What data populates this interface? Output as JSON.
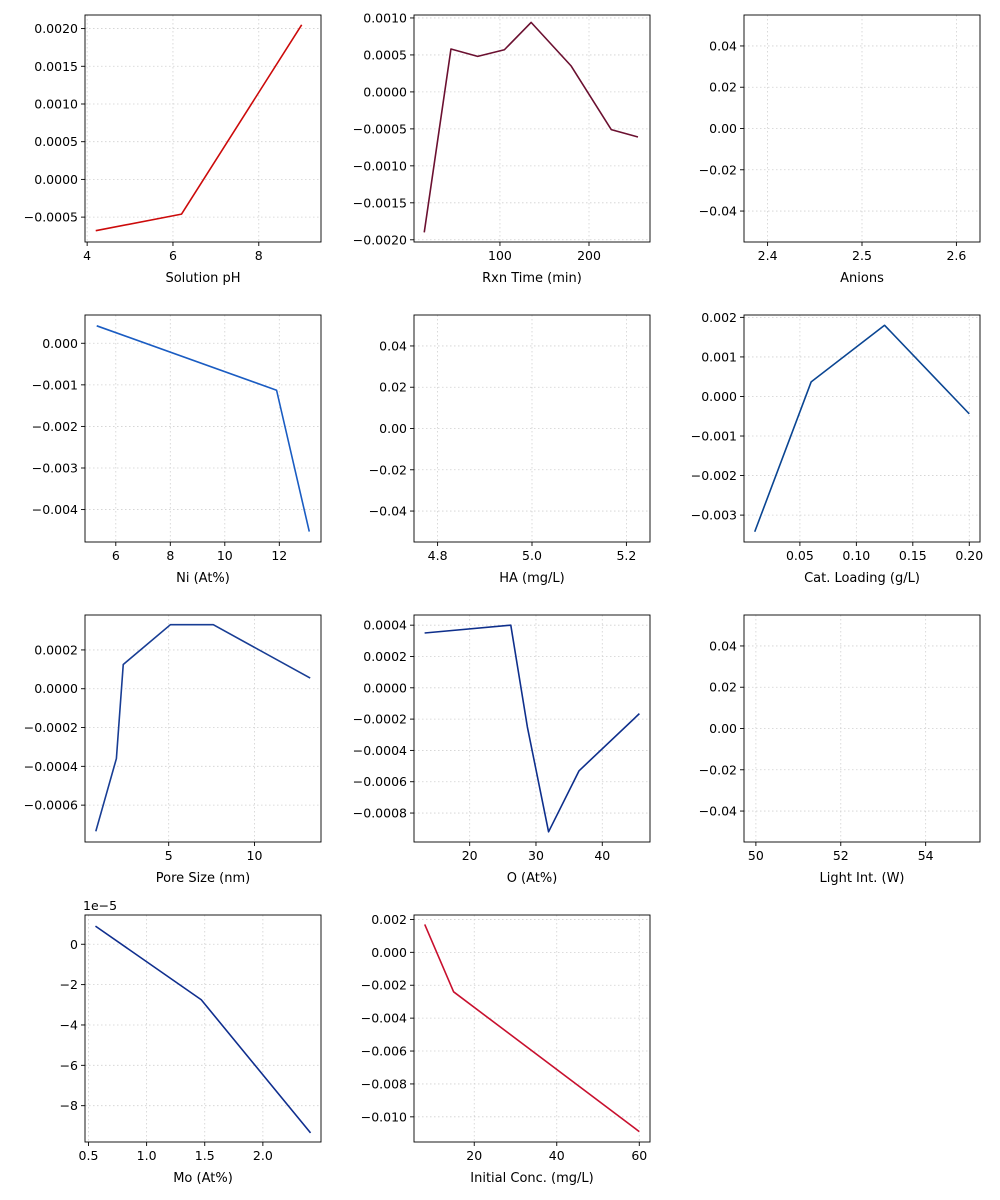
{
  "chart_data": [
    {
      "type": "line",
      "xlabel": "Solution pH",
      "color": "#cc0a0a",
      "grid": true,
      "xlim": [
        3.95,
        9.45
      ],
      "ylim": [
        -0.00083,
        0.00218
      ],
      "xticks": [
        4,
        6,
        8
      ],
      "xtick_labels": [
        "4",
        "6",
        "8"
      ],
      "yticks": [
        -0.0005,
        0.0,
        0.0005,
        0.001,
        0.0015,
        0.002
      ],
      "ytick_labels": [
        "−0.0005",
        "0.0000",
        "0.0005",
        "0.0010",
        "0.0015",
        "0.0020"
      ],
      "series": [
        {
          "x": [
            4.2,
            6.2,
            9.0
          ],
          "y": [
            -0.00068,
            -0.00046,
            0.00205
          ]
        }
      ]
    },
    {
      "type": "line",
      "xlabel": "Rxn Time (min)",
      "color": "#6b1030",
      "grid": true,
      "xlim": [
        3.5,
        268.5
      ],
      "ylim": [
        -0.00203,
        0.00104
      ],
      "xticks": [
        100,
        200
      ],
      "xtick_labels": [
        "100",
        "200"
      ],
      "yticks": [
        -0.002,
        -0.0015,
        -0.001,
        -0.0005,
        0.0,
        0.0005,
        0.001
      ],
      "ytick_labels": [
        "−0.0020",
        "−0.0015",
        "−0.0010",
        "−0.0005",
        "0.0000",
        "0.0005",
        "0.0010"
      ],
      "series": [
        {
          "x": [
            15,
            45,
            75,
            105,
            135,
            180,
            225,
            255
          ],
          "y": [
            -0.0019,
            0.00058,
            0.00048,
            0.00057,
            0.00094,
            0.00035,
            -0.00051,
            -0.00061
          ]
        }
      ]
    },
    {
      "type": "line",
      "xlabel": "Anions",
      "color": "#1f4e9a",
      "grid": true,
      "xlim": [
        2.375,
        2.625
      ],
      "ylim": [
        -0.055,
        0.055
      ],
      "xticks": [
        2.4,
        2.5,
        2.6
      ],
      "xtick_labels": [
        "2.4",
        "2.5",
        "2.6"
      ],
      "yticks": [
        -0.04,
        -0.02,
        0.0,
        0.02,
        0.04
      ],
      "ytick_labels": [
        "−0.04",
        "−0.02",
        "0.00",
        "0.02",
        "0.04"
      ],
      "series": []
    },
    {
      "type": "line",
      "xlabel": "Ni (At%)",
      "color": "#1a5cc2",
      "grid": true,
      "xlim": [
        4.87,
        13.53
      ],
      "ylim": [
        -0.00478,
        0.00068
      ],
      "xticks": [
        6,
        8,
        10,
        12
      ],
      "xtick_labels": [
        "6",
        "8",
        "10",
        "12"
      ],
      "yticks": [
        -0.004,
        -0.003,
        -0.002,
        -0.001,
        0.0
      ],
      "ytick_labels": [
        "−0.004",
        "−0.003",
        "−0.002",
        "−0.001",
        "0.000"
      ],
      "series": [
        {
          "x": [
            5.3,
            11.9,
            13.1
          ],
          "y": [
            0.00042,
            -0.00113,
            -0.00453
          ]
        }
      ]
    },
    {
      "type": "line",
      "xlabel": "HA (mg/L)",
      "color": "#1f4e9a",
      "grid": true,
      "xlim": [
        4.75,
        5.25
      ],
      "ylim": [
        -0.055,
        0.055
      ],
      "xticks": [
        4.8,
        5.0,
        5.2
      ],
      "xtick_labels": [
        "4.8",
        "5.0",
        "5.2"
      ],
      "yticks": [
        -0.04,
        -0.02,
        0.0,
        0.02,
        0.04
      ],
      "ytick_labels": [
        "−0.04",
        "−0.02",
        "0.00",
        "0.02",
        "0.04"
      ],
      "series": []
    },
    {
      "type": "line",
      "xlabel": "Cat. Loading (g/L)",
      "color": "#0a4592",
      "grid": true,
      "xlim": [
        0.0005,
        0.2095
      ],
      "ylim": [
        -0.00368,
        0.00206
      ],
      "xticks": [
        0.05,
        0.1,
        0.15,
        0.2
      ],
      "xtick_labels": [
        "0.05",
        "0.10",
        "0.15",
        "0.20"
      ],
      "yticks": [
        -0.003,
        -0.002,
        -0.001,
        0.0,
        0.001,
        0.002
      ],
      "ytick_labels": [
        "−0.003",
        "−0.002",
        "−0.001",
        "0.000",
        "0.001",
        "0.002"
      ],
      "series": [
        {
          "x": [
            0.01,
            0.06,
            0.125,
            0.2
          ],
          "y": [
            -0.00342,
            0.00037,
            0.0018,
            -0.00044
          ]
        }
      ]
    },
    {
      "type": "line",
      "xlabel": "Pore Size (nm)",
      "color": "#183d94",
      "grid": true,
      "xlim": [
        0.12,
        13.88
      ],
      "ylim": [
        -0.00079,
        0.00038
      ],
      "xticks": [
        5,
        10
      ],
      "xtick_labels": [
        "5",
        "10"
      ],
      "yticks": [
        -0.0006,
        -0.0004,
        -0.0002,
        0.0,
        0.0002
      ],
      "ytick_labels": [
        "−0.0006",
        "−0.0004",
        "−0.0002",
        "0.0000",
        "0.0002"
      ],
      "series": [
        {
          "x": [
            0.75,
            1.95,
            2.35,
            5.1,
            7.6,
            13.25
          ],
          "y": [
            -0.000735,
            -0.00036,
            0.000125,
            0.00033,
            0.00033,
            5.5e-05
          ]
        }
      ]
    },
    {
      "type": "line",
      "xlabel": "O (At%)",
      "color": "#0e2f8c",
      "grid": true,
      "xlim": [
        11.6,
        47.2
      ],
      "ylim": [
        -0.000985,
        0.000465
      ],
      "xticks": [
        20,
        30,
        40
      ],
      "xtick_labels": [
        "20",
        "30",
        "40"
      ],
      "yticks": [
        -0.0008,
        -0.0006,
        -0.0004,
        -0.0002,
        0.0,
        0.0002,
        0.0004
      ],
      "ytick_labels": [
        "−0.0008",
        "−0.0006",
        "−0.0004",
        "−0.0002",
        "0.0000",
        "0.0002",
        "0.0004"
      ],
      "series": [
        {
          "x": [
            13.2,
            26.2,
            28.7,
            31.9,
            36.5,
            45.6
          ],
          "y": [
            0.00035,
            0.0004,
            -0.00025,
            -0.00092,
            -0.00053,
            -0.000165
          ]
        }
      ]
    },
    {
      "type": "line",
      "xlabel": "Light Int. (W)",
      "color": "#1f4e9a",
      "grid": true,
      "xlim": [
        49.72,
        55.28
      ],
      "ylim": [
        -0.055,
        0.055
      ],
      "xticks": [
        50,
        52,
        54
      ],
      "xtick_labels": [
        "50",
        "52",
        "54"
      ],
      "yticks": [
        -0.04,
        -0.02,
        0.0,
        0.02,
        0.04
      ],
      "ytick_labels": [
        "−0.04",
        "−0.02",
        "0.00",
        "0.02",
        "0.04"
      ],
      "series": []
    },
    {
      "type": "line",
      "xlabel": "Mo (At%)",
      "color": "#0f2e8e",
      "grid": true,
      "offset_text": "1e−5",
      "xlim": [
        0.47,
        2.5
      ],
      "ylim": [
        -9.8e-05,
        1.45e-05
      ],
      "xticks": [
        0.5,
        1.0,
        1.5,
        2.0
      ],
      "xtick_labels": [
        "0.5",
        "1.0",
        "1.5",
        "2.0"
      ],
      "yticks": [
        -8e-05,
        -6e-05,
        -4e-05,
        -2e-05,
        0.0
      ],
      "ytick_labels": [
        "−8",
        "−6",
        "−4",
        "−2",
        "0"
      ],
      "series": [
        {
          "x": [
            0.56,
            1.47,
            2.41
          ],
          "y": [
            9e-06,
            -2.75e-05,
            -9.35e-05
          ]
        }
      ]
    },
    {
      "type": "line",
      "xlabel": "Initial Conc. (mg/L)",
      "color": "#c8102e",
      "grid": true,
      "xlim": [
        5.4,
        62.6
      ],
      "ylim": [
        -0.01153,
        0.00227
      ],
      "xticks": [
        20,
        40,
        60
      ],
      "xtick_labels": [
        "20",
        "40",
        "60"
      ],
      "yticks": [
        -0.01,
        -0.008,
        -0.006,
        -0.004,
        -0.002,
        0.0,
        0.002
      ],
      "ytick_labels": [
        "−0.010",
        "−0.008",
        "−0.006",
        "−0.004",
        "−0.002",
        "0.000",
        "0.002"
      ],
      "series": [
        {
          "x": [
            8,
            15,
            60
          ],
          "y": [
            0.0017,
            -0.0024,
            -0.0109
          ]
        }
      ]
    }
  ]
}
